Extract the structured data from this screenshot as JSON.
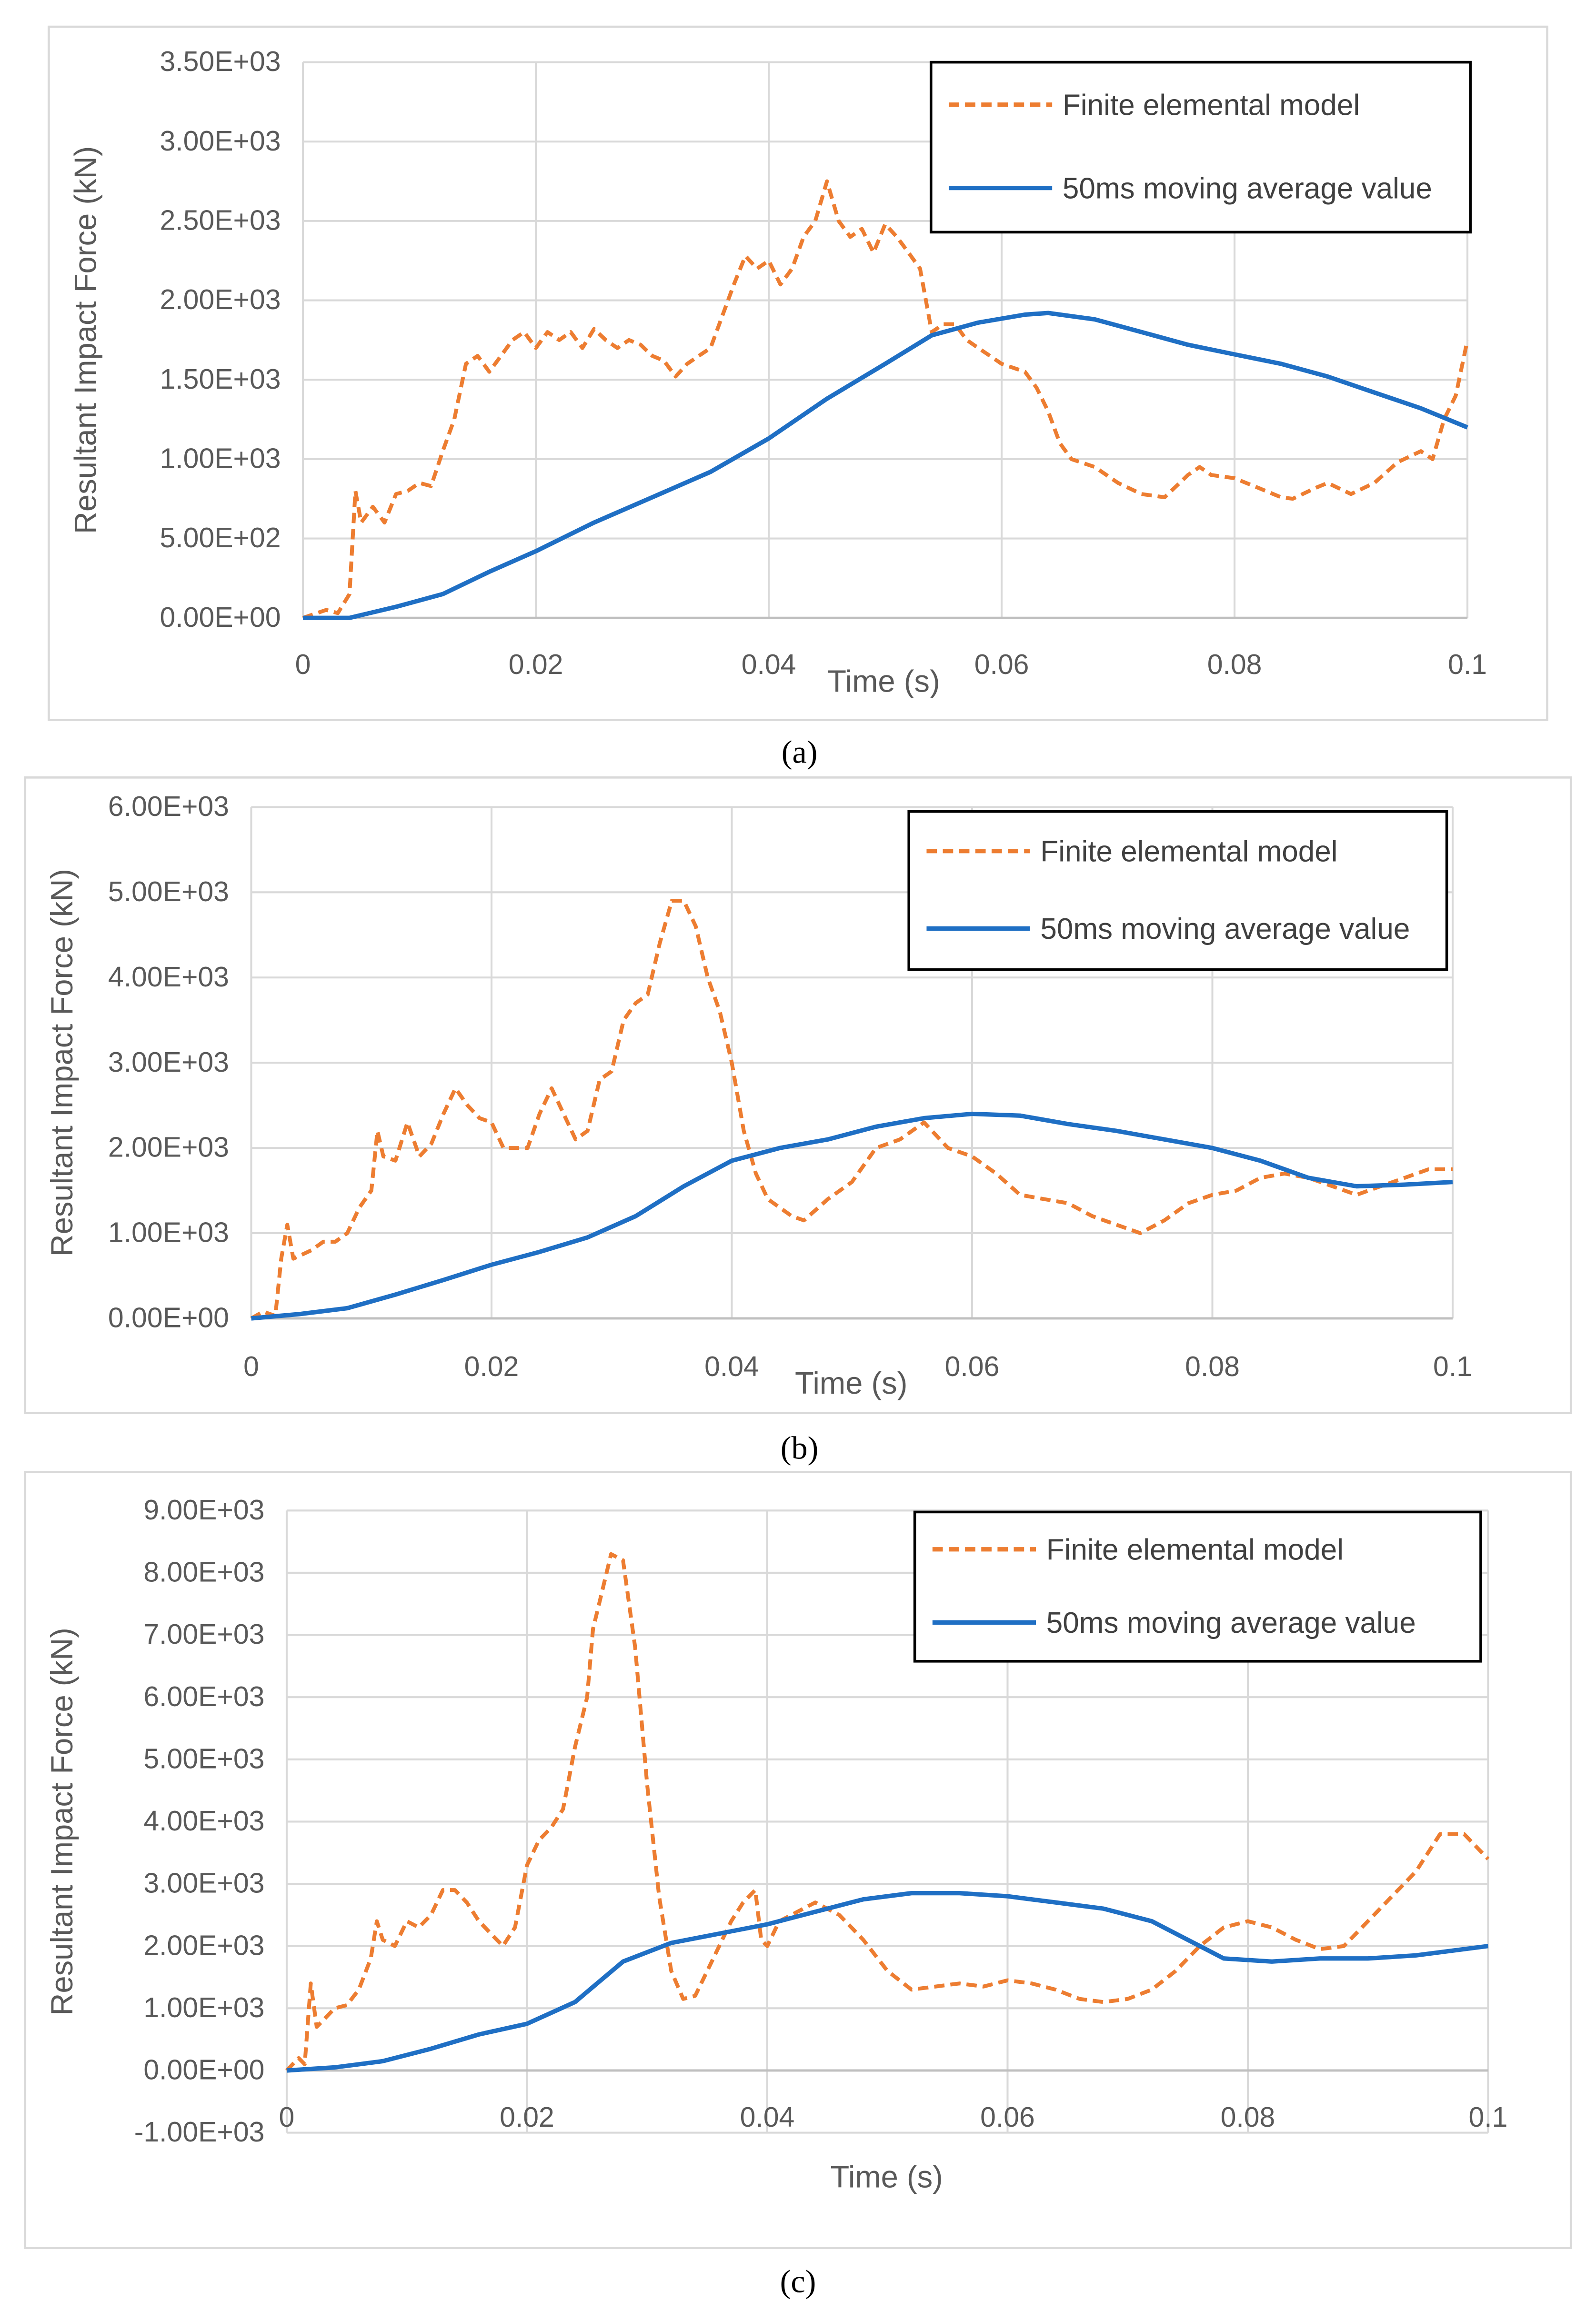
{
  "colors": {
    "fe": "#ED7D31",
    "avg": "#1F6FC4",
    "grid": "#D9D9D9",
    "frame": "#D9D9D9"
  },
  "chart_data": [
    {
      "type": "line",
      "caption": "(a)",
      "xlabel": "Time (s)",
      "ylabel": "Resultant Impact Force (kN)",
      "xlim": [
        0,
        0.1
      ],
      "ylim": [
        0,
        3500
      ],
      "xticks": [
        0,
        0.02,
        0.04,
        0.06,
        0.08,
        0.1
      ],
      "xtick_labels": [
        "0",
        "0.02",
        "0.04",
        "0.06",
        "0.08",
        "0.1"
      ],
      "yticks": [
        0,
        500,
        1000,
        1500,
        2000,
        2500,
        3000,
        3500
      ],
      "ytick_labels": [
        "0.00E+00",
        "5.00E+02",
        "1.00E+03",
        "1.50E+03",
        "2.00E+03",
        "2.50E+03",
        "3.00E+03",
        "3.50E+03"
      ],
      "grid": true,
      "legend_position": "top-right",
      "series": [
        {
          "name": "Finite elemental model",
          "style": "dashed",
          "color": "#ED7D31",
          "x": [
            0,
            0.002,
            0.003,
            0.004,
            0.0045,
            0.005,
            0.006,
            0.007,
            0.008,
            0.009,
            0.01,
            0.011,
            0.012,
            0.013,
            0.014,
            0.015,
            0.016,
            0.017,
            0.018,
            0.019,
            0.02,
            0.021,
            0.022,
            0.023,
            0.024,
            0.025,
            0.026,
            0.027,
            0.028,
            0.029,
            0.03,
            0.031,
            0.032,
            0.033,
            0.034,
            0.035,
            0.036,
            0.037,
            0.038,
            0.039,
            0.04,
            0.041,
            0.042,
            0.043,
            0.044,
            0.045,
            0.046,
            0.047,
            0.048,
            0.049,
            0.05,
            0.051,
            0.052,
            0.053,
            0.054,
            0.055,
            0.056,
            0.057,
            0.058,
            0.059,
            0.06,
            0.062,
            0.063,
            0.064,
            0.065,
            0.066,
            0.068,
            0.07,
            0.072,
            0.074,
            0.076,
            0.077,
            0.078,
            0.08,
            0.082,
            0.084,
            0.085,
            0.087,
            0.088,
            0.09,
            0.092,
            0.094,
            0.096,
            0.097,
            0.098,
            0.099,
            0.1
          ],
          "y": [
            0,
            50,
            30,
            150,
            800,
            600,
            700,
            600,
            780,
            800,
            850,
            830,
            1050,
            1250,
            1600,
            1650,
            1550,
            1650,
            1750,
            1800,
            1700,
            1800,
            1750,
            1800,
            1700,
            1820,
            1750,
            1700,
            1750,
            1720,
            1650,
            1620,
            1520,
            1600,
            1650,
            1700,
            1900,
            2100,
            2280,
            2200,
            2250,
            2100,
            2200,
            2400,
            2500,
            2750,
            2500,
            2400,
            2450,
            2300,
            2480,
            2400,
            2300,
            2200,
            1800,
            1850,
            1850,
            1750,
            1700,
            1650,
            1600,
            1550,
            1450,
            1300,
            1100,
            1000,
            950,
            850,
            780,
            760,
            900,
            950,
            900,
            880,
            820,
            760,
            750,
            820,
            850,
            780,
            850,
            980,
            1050,
            1000,
            1250,
            1400,
            1750
          ]
        },
        {
          "name": "50ms moving average value",
          "style": "solid",
          "color": "#1F6FC4",
          "x": [
            0,
            0.004,
            0.008,
            0.012,
            0.016,
            0.02,
            0.025,
            0.03,
            0.035,
            0.04,
            0.045,
            0.05,
            0.054,
            0.058,
            0.062,
            0.064,
            0.068,
            0.072,
            0.076,
            0.08,
            0.084,
            0.088,
            0.092,
            0.096,
            0.1
          ],
          "y": [
            0,
            0,
            70,
            150,
            290,
            420,
            600,
            760,
            920,
            1130,
            1380,
            1600,
            1780,
            1860,
            1910,
            1920,
            1880,
            1800,
            1720,
            1660,
            1600,
            1520,
            1420,
            1320,
            1200
          ]
        }
      ]
    },
    {
      "type": "line",
      "caption": "(b)",
      "xlabel": "Time (s)",
      "ylabel": "Resultant Impact Force (kN)",
      "xlim": [
        0,
        0.1
      ],
      "ylim": [
        0,
        6000
      ],
      "xticks": [
        0,
        0.02,
        0.04,
        0.06,
        0.08,
        0.1
      ],
      "xtick_labels": [
        "0",
        "0.02",
        "0.04",
        "0.06",
        "0.08",
        "0.1"
      ],
      "yticks": [
        0,
        1000,
        2000,
        3000,
        4000,
        5000,
        6000
      ],
      "ytick_labels": [
        "0.00E+00",
        "1.00E+03",
        "2.00E+03",
        "3.00E+03",
        "4.00E+03",
        "5.00E+03",
        "6.00E+03"
      ],
      "grid": true,
      "legend_position": "top-right",
      "series": [
        {
          "name": "Finite elemental model",
          "style": "dashed",
          "color": "#ED7D31",
          "x": [
            0,
            0.001,
            0.002,
            0.0025,
            0.003,
            0.0035,
            0.005,
            0.006,
            0.007,
            0.008,
            0.009,
            0.01,
            0.0105,
            0.011,
            0.012,
            0.013,
            0.014,
            0.015,
            0.016,
            0.017,
            0.018,
            0.019,
            0.02,
            0.021,
            0.022,
            0.023,
            0.024,
            0.025,
            0.026,
            0.027,
            0.028,
            0.029,
            0.03,
            0.031,
            0.032,
            0.033,
            0.034,
            0.035,
            0.036,
            0.037,
            0.038,
            0.039,
            0.04,
            0.041,
            0.042,
            0.043,
            0.045,
            0.046,
            0.048,
            0.05,
            0.052,
            0.054,
            0.056,
            0.058,
            0.06,
            0.062,
            0.064,
            0.066,
            0.068,
            0.07,
            0.072,
            0.074,
            0.076,
            0.078,
            0.08,
            0.082,
            0.084,
            0.086,
            0.088,
            0.09,
            0.092,
            0.094,
            0.096,
            0.098,
            0.1
          ],
          "y": [
            0,
            80,
            30,
            700,
            1100,
            700,
            800,
            900,
            900,
            1000,
            1300,
            1500,
            2200,
            1900,
            1850,
            2300,
            1900,
            2050,
            2400,
            2700,
            2500,
            2350,
            2300,
            2000,
            2000,
            2000,
            2400,
            2700,
            2400,
            2100,
            2200,
            2800,
            2900,
            3500,
            3700,
            3800,
            4400,
            4900,
            4900,
            4600,
            4000,
            3600,
            3000,
            2200,
            1700,
            1400,
            1200,
            1150,
            1400,
            1600,
            2000,
            2100,
            2300,
            2000,
            1900,
            1700,
            1450,
            1400,
            1350,
            1200,
            1100,
            1000,
            1150,
            1350,
            1450,
            1500,
            1650,
            1700,
            1650,
            1550,
            1450,
            1550,
            1650,
            1750,
            1750
          ]
        },
        {
          "name": "50ms moving average value",
          "style": "solid",
          "color": "#1F6FC4",
          "x": [
            0,
            0.004,
            0.008,
            0.012,
            0.016,
            0.02,
            0.024,
            0.028,
            0.032,
            0.036,
            0.04,
            0.044,
            0.048,
            0.052,
            0.056,
            0.06,
            0.064,
            0.068,
            0.072,
            0.076,
            0.08,
            0.084,
            0.088,
            0.092,
            0.096,
            0.1
          ],
          "y": [
            0,
            50,
            120,
            280,
            450,
            630,
            780,
            950,
            1200,
            1550,
            1850,
            2000,
            2100,
            2250,
            2350,
            2400,
            2380,
            2280,
            2200,
            2100,
            2000,
            1850,
            1650,
            1550,
            1570,
            1600
          ]
        }
      ]
    },
    {
      "type": "line",
      "caption": "(c)",
      "xlabel": "Time (s)",
      "ylabel": "Resultant Impact Force (kN)",
      "xlim": [
        0,
        0.1
      ],
      "ylim": [
        -1000,
        9000
      ],
      "xticks": [
        0,
        0.02,
        0.04,
        0.06,
        0.08,
        0.1
      ],
      "xtick_labels": [
        "0",
        "0.02",
        "0.04",
        "0.06",
        "0.08",
        "0.1"
      ],
      "yticks": [
        -1000,
        0,
        1000,
        2000,
        3000,
        4000,
        5000,
        6000,
        7000,
        8000,
        9000
      ],
      "ytick_labels": [
        "-1.00E+03",
        "0.00E+00",
        "1.00E+03",
        "2.00E+03",
        "3.00E+03",
        "4.00E+03",
        "5.00E+03",
        "6.00E+03",
        "7.00E+03",
        "8.00E+03",
        "9.00E+03"
      ],
      "grid": true,
      "legend_position": "top-right",
      "series": [
        {
          "name": "Finite elemental model",
          "style": "dashed",
          "color": "#ED7D31",
          "x": [
            0,
            0.001,
            0.0015,
            0.002,
            0.0025,
            0.003,
            0.004,
            0.005,
            0.006,
            0.007,
            0.0075,
            0.008,
            0.009,
            0.01,
            0.011,
            0.012,
            0.013,
            0.014,
            0.015,
            0.016,
            0.017,
            0.018,
            0.019,
            0.02,
            0.021,
            0.022,
            0.023,
            0.024,
            0.025,
            0.0255,
            0.026,
            0.027,
            0.028,
            0.029,
            0.03,
            0.031,
            0.032,
            0.033,
            0.034,
            0.035,
            0.036,
            0.037,
            0.038,
            0.039,
            0.0395,
            0.04,
            0.041,
            0.042,
            0.043,
            0.044,
            0.046,
            0.048,
            0.05,
            0.052,
            0.054,
            0.056,
            0.058,
            0.06,
            0.062,
            0.064,
            0.066,
            0.068,
            0.07,
            0.072,
            0.074,
            0.076,
            0.078,
            0.08,
            0.082,
            0.084,
            0.086,
            0.088,
            0.09,
            0.092,
            0.094,
            0.096,
            0.098,
            0.1
          ],
          "y": [
            0,
            200,
            100,
            1400,
            700,
            800,
            1000,
            1050,
            1300,
            1800,
            2400,
            2100,
            2000,
            2400,
            2300,
            2500,
            2900,
            2900,
            2700,
            2400,
            2200,
            2000,
            2300,
            3300,
            3700,
            3900,
            4200,
            5200,
            6000,
            7100,
            7500,
            8300,
            8200,
            6800,
            4600,
            2800,
            1600,
            1150,
            1200,
            1600,
            2000,
            2400,
            2700,
            2900,
            2100,
            2000,
            2400,
            2500,
            2600,
            2700,
            2500,
            2100,
            1600,
            1300,
            1350,
            1400,
            1350,
            1450,
            1400,
            1300,
            1150,
            1100,
            1150,
            1300,
            1600,
            2000,
            2300,
            2400,
            2300,
            2100,
            1950,
            2000,
            2400,
            2800,
            3200,
            3800,
            3800,
            3400
          ]
        },
        {
          "name": "50ms moving average value",
          "style": "solid",
          "color": "#1F6FC4",
          "x": [
            0,
            0.004,
            0.008,
            0.012,
            0.016,
            0.02,
            0.024,
            0.028,
            0.032,
            0.036,
            0.04,
            0.044,
            0.048,
            0.052,
            0.056,
            0.06,
            0.064,
            0.068,
            0.072,
            0.076,
            0.078,
            0.082,
            0.086,
            0.09,
            0.094,
            0.1
          ],
          "y": [
            0,
            50,
            150,
            350,
            580,
            750,
            1100,
            1750,
            2050,
            2200,
            2350,
            2550,
            2750,
            2850,
            2850,
            2800,
            2700,
            2600,
            2400,
            2000,
            1800,
            1750,
            1800,
            1800,
            1850,
            2000
          ]
        }
      ]
    }
  ]
}
